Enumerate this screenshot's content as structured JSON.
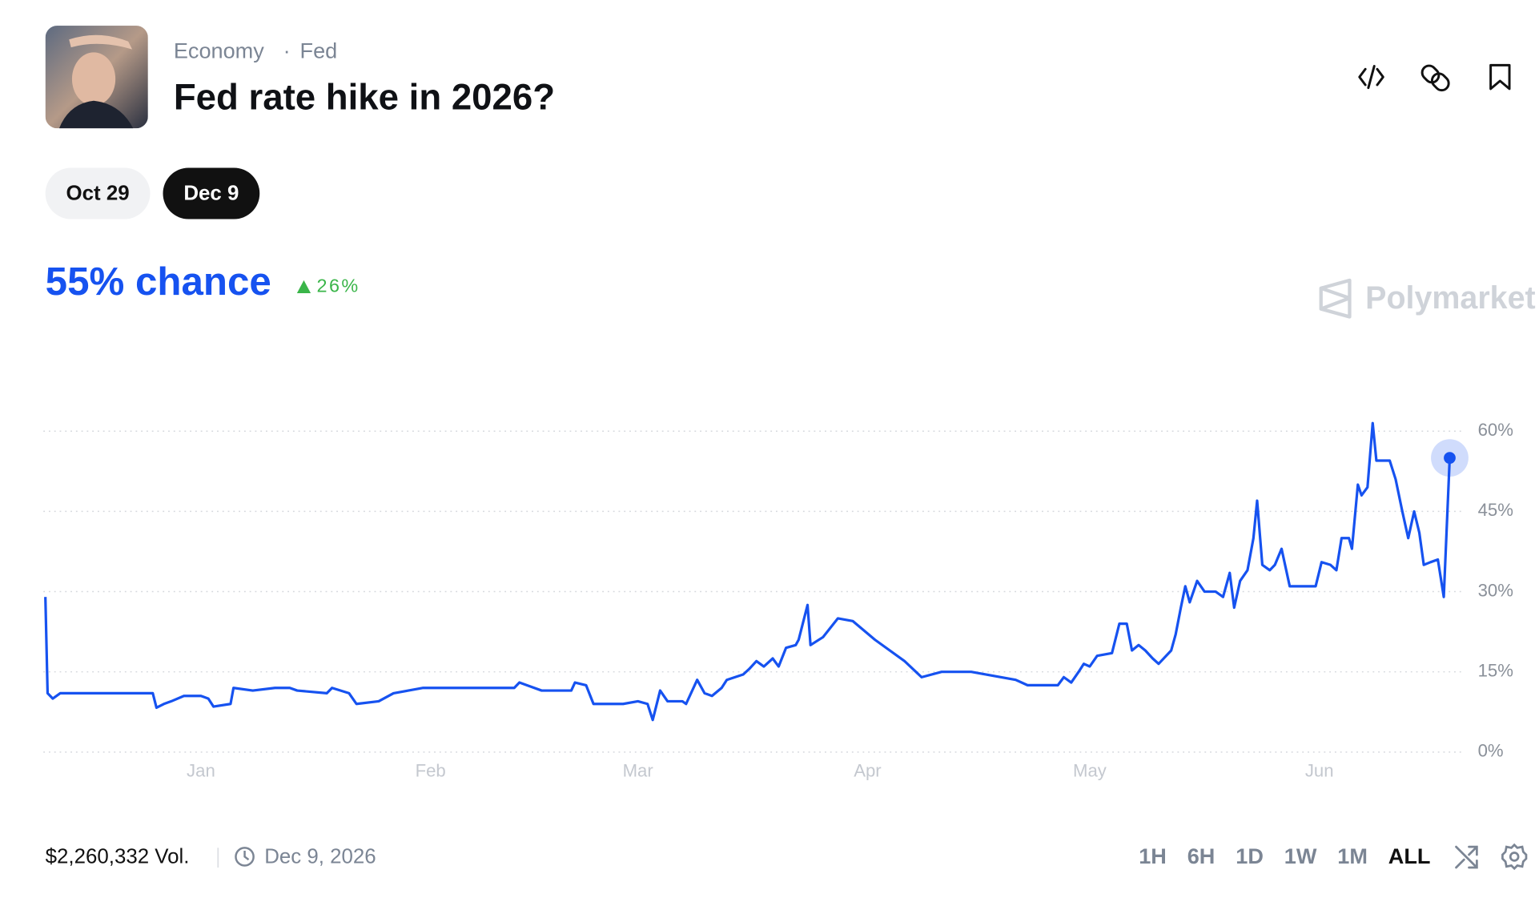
{
  "header": {
    "breadcrumbs": [
      "Economy",
      "Fed"
    ],
    "title": "Fed rate hike in 2026?"
  },
  "tabs": [
    "Oct 29",
    "Dec 9"
  ],
  "active_tab": 1,
  "chance": "55% chance",
  "change": "26%",
  "brand": "Polymarket",
  "chart_data": {
    "type": "line",
    "color": "#1652f0",
    "x": [
      -21,
      -20.7,
      -20,
      -19,
      -15,
      -10,
      -6.5,
      -6,
      -5,
      -4,
      -2.3,
      0,
      1,
      1.7,
      4,
      4.4,
      7,
      10,
      12,
      13,
      17,
      17.7,
      20,
      21,
      24,
      26,
      28,
      30,
      35,
      40,
      42.3,
      43,
      44,
      46,
      50,
      50.5,
      52,
      53,
      57,
      59,
      60.3,
      61,
      62,
      63,
      65,
      65.5,
      67,
      68,
      69,
      70.3,
      71,
      73.2,
      74,
      75,
      76,
      77.2,
      78,
      79,
      80.3,
      80.7,
      81.9,
      82.3,
      84,
      86,
      88,
      91,
      95,
      97.3,
      100,
      104,
      110,
      111.6,
      115.7,
      116.5,
      117.5,
      118.5,
      119.2,
      120,
      121,
      123,
      124,
      125,
      125.7,
      126.6,
      127.5,
      128.5,
      129.3,
      131,
      131.6,
      132.3,
      132.9,
      133.5,
      134.5,
      135.5,
      137,
      138,
      138.9,
      139.5,
      140.3,
      141.3,
      142.1,
      142.6,
      143.3,
      144.3,
      145,
      145.9,
      147,
      148,
      150.5,
      151.3,
      152.5,
      153.3,
      154,
      155,
      155.4,
      156.2,
      156.7,
      157.5,
      158.2,
      158.7,
      160.5,
      161.3,
      162.2,
      163,
      163.8,
      164.5,
      165.1,
      166,
      167,
      167.8,
      168.6
    ],
    "values": [
      29,
      11,
      10,
      11,
      11,
      11,
      11,
      8.3,
      9,
      9.5,
      10.5,
      10.5,
      10,
      8.5,
      9,
      12,
      11.5,
      12,
      12,
      11.5,
      11,
      12,
      11,
      9,
      9.5,
      11,
      11.5,
      12,
      12,
      12,
      12,
      13,
      12.5,
      11.5,
      11.5,
      13,
      12.5,
      9,
      9,
      9.5,
      9,
      6,
      11.5,
      9.5,
      9.5,
      9,
      13.5,
      11,
      10.5,
      12,
      13.5,
      14.5,
      15.5,
      17,
      16,
      17.5,
      16,
      19.5,
      20,
      21,
      27.5,
      20,
      21.5,
      25,
      24.5,
      21,
      17,
      14,
      15,
      15,
      13.5,
      12.5,
      12.5,
      14,
      13,
      15,
      16.5,
      16,
      18,
      18.5,
      24,
      24,
      19,
      20,
      19,
      17.5,
      16.5,
      19,
      22,
      27,
      31,
      28,
      32,
      30,
      30,
      29,
      33.5,
      27,
      32,
      34,
      40,
      47,
      35,
      34,
      35,
      38,
      31,
      31,
      31,
      35.5,
      35,
      34,
      40,
      40,
      38,
      50,
      48,
      49.5,
      61.5,
      54.5,
      54.5,
      51,
      45,
      40,
      45,
      41,
      35,
      35.5,
      36,
      29,
      55
    ],
    "xlim": [
      -21,
      170
    ],
    "xticks": [
      {
        "value": 0,
        "label": "Jan"
      },
      {
        "value": 31,
        "label": "Feb"
      },
      {
        "value": 59,
        "label": "Mar"
      },
      {
        "value": 90,
        "label": "Apr"
      },
      {
        "value": 120,
        "label": "May"
      },
      {
        "value": 151,
        "label": "Jun"
      }
    ],
    "ylim": [
      0,
      62
    ],
    "yticks": [
      {
        "value": 0,
        "label": "0%"
      },
      {
        "value": 15,
        "label": "15%"
      },
      {
        "value": 30,
        "label": "30%"
      },
      {
        "value": 45,
        "label": "45%"
      },
      {
        "value": 60,
        "label": "60%"
      }
    ],
    "grid": true
  },
  "footer": {
    "volume": "$2,260,332 Vol.",
    "date": "Dec 9, 2026",
    "ranges": [
      "1H",
      "6H",
      "1D",
      "1W",
      "1M",
      "ALL"
    ],
    "active_range": 5
  }
}
